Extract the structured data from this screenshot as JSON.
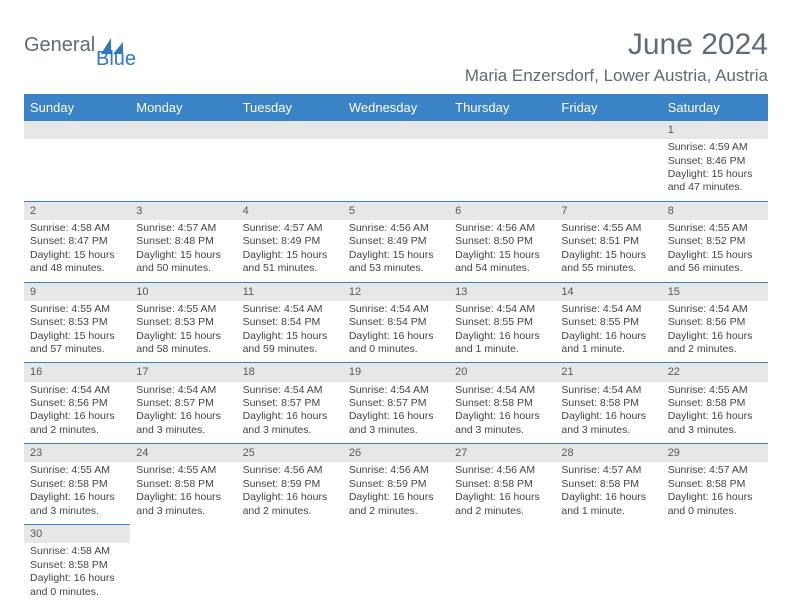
{
  "colors": {
    "header_bg": "#3b83c7",
    "daynum_bg": "#e7e7e7",
    "rule": "#3b83c7",
    "logo_gray": "#5f6b76",
    "logo_blue": "#2f78c2"
  },
  "logo": {
    "part1": "General",
    "part2": "Blue"
  },
  "title": "June 2024",
  "location": "Maria Enzersdorf, Lower Austria, Austria",
  "day_headers": [
    "Sunday",
    "Monday",
    "Tuesday",
    "Wednesday",
    "Thursday",
    "Friday",
    "Saturday"
  ],
  "weeks": [
    [
      null,
      null,
      null,
      null,
      null,
      null,
      {
        "n": "1",
        "sunrise": "4:59 AM",
        "sunset": "8:46 PM",
        "daylight": "15 hours and 47 minutes."
      }
    ],
    [
      {
        "n": "2",
        "sunrise": "4:58 AM",
        "sunset": "8:47 PM",
        "daylight": "15 hours and 48 minutes."
      },
      {
        "n": "3",
        "sunrise": "4:57 AM",
        "sunset": "8:48 PM",
        "daylight": "15 hours and 50 minutes."
      },
      {
        "n": "4",
        "sunrise": "4:57 AM",
        "sunset": "8:49 PM",
        "daylight": "15 hours and 51 minutes."
      },
      {
        "n": "5",
        "sunrise": "4:56 AM",
        "sunset": "8:49 PM",
        "daylight": "15 hours and 53 minutes."
      },
      {
        "n": "6",
        "sunrise": "4:56 AM",
        "sunset": "8:50 PM",
        "daylight": "15 hours and 54 minutes."
      },
      {
        "n": "7",
        "sunrise": "4:55 AM",
        "sunset": "8:51 PM",
        "daylight": "15 hours and 55 minutes."
      },
      {
        "n": "8",
        "sunrise": "4:55 AM",
        "sunset": "8:52 PM",
        "daylight": "15 hours and 56 minutes."
      }
    ],
    [
      {
        "n": "9",
        "sunrise": "4:55 AM",
        "sunset": "8:53 PM",
        "daylight": "15 hours and 57 minutes."
      },
      {
        "n": "10",
        "sunrise": "4:55 AM",
        "sunset": "8:53 PM",
        "daylight": "15 hours and 58 minutes."
      },
      {
        "n": "11",
        "sunrise": "4:54 AM",
        "sunset": "8:54 PM",
        "daylight": "15 hours and 59 minutes."
      },
      {
        "n": "12",
        "sunrise": "4:54 AM",
        "sunset": "8:54 PM",
        "daylight": "16 hours and 0 minutes."
      },
      {
        "n": "13",
        "sunrise": "4:54 AM",
        "sunset": "8:55 PM",
        "daylight": "16 hours and 1 minute."
      },
      {
        "n": "14",
        "sunrise": "4:54 AM",
        "sunset": "8:55 PM",
        "daylight": "16 hours and 1 minute."
      },
      {
        "n": "15",
        "sunrise": "4:54 AM",
        "sunset": "8:56 PM",
        "daylight": "16 hours and 2 minutes."
      }
    ],
    [
      {
        "n": "16",
        "sunrise": "4:54 AM",
        "sunset": "8:56 PM",
        "daylight": "16 hours and 2 minutes."
      },
      {
        "n": "17",
        "sunrise": "4:54 AM",
        "sunset": "8:57 PM",
        "daylight": "16 hours and 3 minutes."
      },
      {
        "n": "18",
        "sunrise": "4:54 AM",
        "sunset": "8:57 PM",
        "daylight": "16 hours and 3 minutes."
      },
      {
        "n": "19",
        "sunrise": "4:54 AM",
        "sunset": "8:57 PM",
        "daylight": "16 hours and 3 minutes."
      },
      {
        "n": "20",
        "sunrise": "4:54 AM",
        "sunset": "8:58 PM",
        "daylight": "16 hours and 3 minutes."
      },
      {
        "n": "21",
        "sunrise": "4:54 AM",
        "sunset": "8:58 PM",
        "daylight": "16 hours and 3 minutes."
      },
      {
        "n": "22",
        "sunrise": "4:55 AM",
        "sunset": "8:58 PM",
        "daylight": "16 hours and 3 minutes."
      }
    ],
    [
      {
        "n": "23",
        "sunrise": "4:55 AM",
        "sunset": "8:58 PM",
        "daylight": "16 hours and 3 minutes."
      },
      {
        "n": "24",
        "sunrise": "4:55 AM",
        "sunset": "8:58 PM",
        "daylight": "16 hours and 3 minutes."
      },
      {
        "n": "25",
        "sunrise": "4:56 AM",
        "sunset": "8:59 PM",
        "daylight": "16 hours and 2 minutes."
      },
      {
        "n": "26",
        "sunrise": "4:56 AM",
        "sunset": "8:59 PM",
        "daylight": "16 hours and 2 minutes."
      },
      {
        "n": "27",
        "sunrise": "4:56 AM",
        "sunset": "8:58 PM",
        "daylight": "16 hours and 2 minutes."
      },
      {
        "n": "28",
        "sunrise": "4:57 AM",
        "sunset": "8:58 PM",
        "daylight": "16 hours and 1 minute."
      },
      {
        "n": "29",
        "sunrise": "4:57 AM",
        "sunset": "8:58 PM",
        "daylight": "16 hours and 0 minutes."
      }
    ],
    [
      {
        "n": "30",
        "sunrise": "4:58 AM",
        "sunset": "8:58 PM",
        "daylight": "16 hours and 0 minutes."
      },
      null,
      null,
      null,
      null,
      null,
      null
    ]
  ],
  "labels": {
    "sunrise": "Sunrise: ",
    "sunset": "Sunset: ",
    "daylight": "Daylight: "
  }
}
